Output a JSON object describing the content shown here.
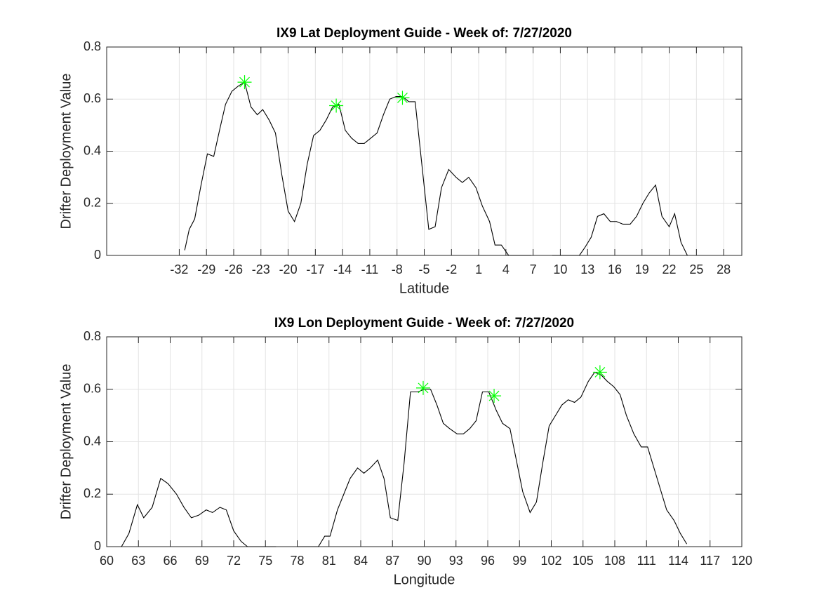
{
  "chart_data": [
    {
      "type": "line",
      "title": "IX9 Lat Deployment Guide - Week of: 7/27/2020",
      "xlabel": "Latitude",
      "ylabel": "Drifter Deployment Value",
      "x": [
        -31.4,
        -30.9,
        -30.3,
        -29.6,
        -28.9,
        -28.2,
        -27.5,
        -26.9,
        -26.2,
        -25.5,
        -24.8,
        -24.1,
        -23.4,
        -22.8,
        -22.1,
        -21.4,
        -20.7,
        -20.0,
        -19.3,
        -18.6,
        -17.9,
        -17.2,
        -16.5,
        -15.8,
        -15.1,
        -14.4,
        -13.7,
        -13.0,
        -12.3,
        -11.6,
        -10.9,
        -10.2,
        -9.5,
        -8.8,
        -8.1,
        -7.4,
        -6.7,
        -6.0,
        -4.5,
        -3.8,
        -3.1,
        -2.3,
        -1.5,
        -0.8,
        -0.1,
        0.7,
        1.4,
        2.2,
        2.8,
        3.5,
        4.3,
        6.8,
        7.6,
        9.1,
        12.1,
        12.7,
        13.4,
        14.1,
        14.8,
        15.5,
        16.2,
        16.9,
        17.7,
        18.4,
        19.1,
        19.8,
        20.5,
        21.2,
        22.0,
        22.6,
        23.3,
        24.0
      ],
      "series": [
        {
          "color": "#000000",
          "values": [
            0.02,
            0.1,
            0.14,
            0.27,
            0.39,
            0.38,
            0.49,
            0.58,
            0.63,
            0.65,
            0.665,
            0.57,
            0.54,
            0.56,
            0.52,
            0.47,
            0.31,
            0.17,
            0.13,
            0.2,
            0.35,
            0.46,
            0.48,
            0.52,
            0.57,
            0.58,
            0.48,
            0.45,
            0.43,
            0.43,
            0.45,
            0.47,
            0.54,
            0.6,
            0.61,
            0.61,
            0.59,
            0.59,
            0.1,
            0.11,
            0.26,
            0.33,
            0.3,
            0.28,
            0.3,
            0.26,
            0.19,
            0.13,
            0.04,
            0.04,
            0.0,
            0.0,
            null,
            0.0,
            0.0,
            0.03,
            0.07,
            0.15,
            0.16,
            0.13,
            0.13,
            0.12,
            0.12,
            0.15,
            0.2,
            0.24,
            0.27,
            0.15,
            0.11,
            0.16,
            0.05,
            0.0
          ]
        }
      ],
      "markers": {
        "color": "#00ff00",
        "x": [
          -24.8,
          -14.7,
          -7.4
        ],
        "values": [
          0.665,
          0.575,
          0.605
        ]
      },
      "xlim": [
        -40,
        30
      ],
      "ylim": [
        0,
        0.8
      ],
      "xticks": [
        -32,
        -29,
        -26,
        -23,
        -20,
        -17,
        -14,
        -11,
        -8,
        -5,
        -2,
        1,
        4,
        7,
        10,
        13,
        16,
        19,
        22,
        25,
        28
      ],
      "yticks": [
        0,
        0.2,
        0.4,
        0.6,
        0.8
      ],
      "grid": true
    },
    {
      "type": "line",
      "title": "IX9 Lon Deployment Guide - Week of: 7/27/2020",
      "xlabel": "Longitude",
      "ylabel": "Drifter Deployment Value",
      "x": [
        61.4,
        62.1,
        62.9,
        63.5,
        64.3,
        65.1,
        65.8,
        66.6,
        67.3,
        68.0,
        68.7,
        69.4,
        70.0,
        70.7,
        71.3,
        72.0,
        72.7,
        73.3,
        76.0,
        77.0,
        78.0,
        80.0,
        80.6,
        81.1,
        81.8,
        82.4,
        83.0,
        83.7,
        84.3,
        84.9,
        85.6,
        86.2,
        86.8,
        87.5,
        88.1,
        88.7,
        89.4,
        90.0,
        90.6,
        91.2,
        91.8,
        92.4,
        93.1,
        93.7,
        94.3,
        94.9,
        95.5,
        96.1,
        96.8,
        97.4,
        98.1,
        98.7,
        99.3,
        100.0,
        100.6,
        101.2,
        101.8,
        102.4,
        103.0,
        103.6,
        104.2,
        104.8,
        105.5,
        106.1,
        106.7,
        107.3,
        107.9,
        108.5,
        109.1,
        109.8,
        110.5,
        111.1,
        111.7,
        112.3,
        112.9,
        113.6,
        114.2,
        114.8
      ],
      "series": [
        {
          "color": "#000000",
          "values": [
            0.0,
            0.05,
            0.16,
            0.11,
            0.15,
            0.26,
            0.24,
            0.2,
            0.15,
            0.11,
            0.12,
            0.14,
            0.13,
            0.15,
            0.14,
            0.06,
            0.02,
            0.0,
            0.0,
            null,
            0.0,
            0.0,
            0.04,
            0.04,
            0.14,
            0.2,
            0.26,
            0.3,
            0.28,
            0.3,
            0.33,
            0.26,
            0.11,
            0.1,
            0.32,
            0.59,
            0.59,
            0.6,
            0.6,
            0.54,
            0.47,
            0.45,
            0.43,
            0.43,
            0.45,
            0.48,
            0.59,
            0.59,
            0.52,
            0.47,
            0.45,
            0.33,
            0.21,
            0.13,
            0.17,
            0.32,
            0.46,
            0.5,
            0.54,
            0.56,
            0.55,
            0.57,
            0.63,
            0.665,
            0.655,
            0.63,
            0.61,
            0.58,
            0.5,
            0.43,
            0.38,
            0.38,
            0.3,
            0.22,
            0.14,
            0.1,
            0.05,
            0.01
          ]
        }
      ],
      "markers": {
        "color": "#00ff00",
        "x": [
          89.9,
          96.6,
          106.6
        ],
        "values": [
          0.605,
          0.575,
          0.665
        ]
      },
      "xlim": [
        60,
        120
      ],
      "ylim": [
        0,
        0.8
      ],
      "xticks": [
        60,
        63,
        66,
        69,
        72,
        75,
        78,
        81,
        84,
        87,
        90,
        93,
        96,
        99,
        102,
        105,
        108,
        111,
        114,
        117,
        120
      ],
      "yticks": [
        0,
        0.2,
        0.4,
        0.6,
        0.8
      ],
      "grid": true
    }
  ]
}
